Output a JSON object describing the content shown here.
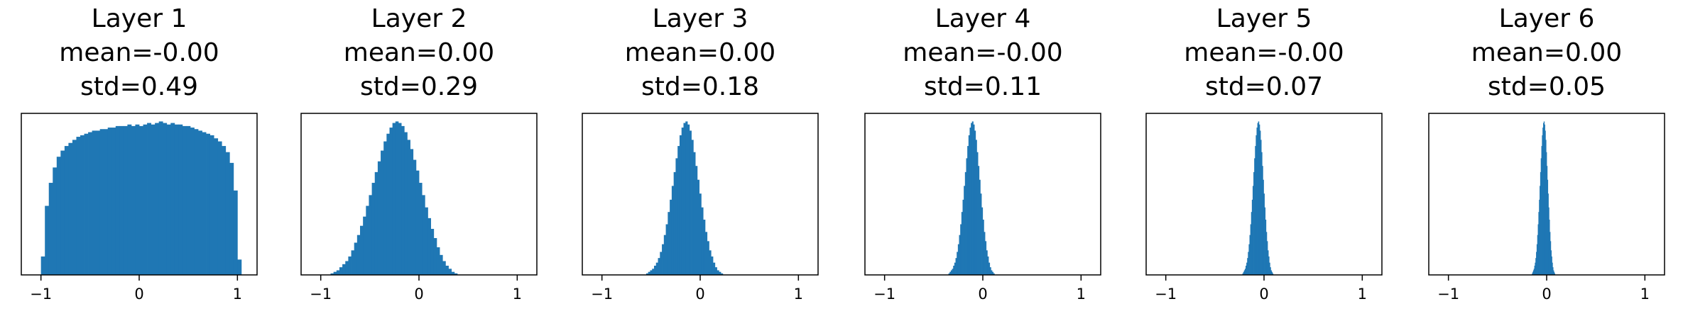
{
  "bar_color": "#1f77b4",
  "chart_data": [
    {
      "type": "bar",
      "title": "Layer 1",
      "subtitle_lines": [
        "mean=-0.00",
        "std=0.49"
      ],
      "xlim": [
        -1.2,
        1.2
      ],
      "xticks": [
        -1,
        0,
        1
      ],
      "xtick_labels": [
        "−1",
        "0",
        "1"
      ],
      "yticks": [],
      "bin_width": 0.04,
      "bin_start": -1.0,
      "values": [
        0.12,
        0.45,
        0.6,
        0.7,
        0.77,
        0.81,
        0.84,
        0.86,
        0.88,
        0.9,
        0.91,
        0.92,
        0.93,
        0.94,
        0.94,
        0.95,
        0.95,
        0.96,
        0.96,
        0.97,
        0.97,
        0.97,
        0.98,
        0.97,
        0.98,
        0.97,
        0.98,
        0.99,
        0.98,
        0.99,
        1.0,
        0.99,
        0.98,
        0.99,
        0.98,
        0.98,
        0.97,
        0.97,
        0.96,
        0.95,
        0.94,
        0.93,
        0.92,
        0.91,
        0.89,
        0.87,
        0.84,
        0.8,
        0.73,
        0.55,
        0.1
      ]
    },
    {
      "type": "bar",
      "title": "Layer 2",
      "subtitle_lines": [
        "mean=0.00",
        "std=0.29"
      ],
      "xlim": [
        -1.2,
        1.2
      ],
      "xticks": [
        -1,
        0,
        1
      ],
      "xtick_labels": [
        "−1",
        "0",
        "1"
      ],
      "yticks": [],
      "bin_width": 0.03,
      "bin_start": -0.9,
      "values": [
        0.01,
        0.02,
        0.03,
        0.05,
        0.07,
        0.09,
        0.12,
        0.16,
        0.21,
        0.26,
        0.32,
        0.38,
        0.45,
        0.52,
        0.6,
        0.67,
        0.74,
        0.81,
        0.87,
        0.92,
        0.96,
        0.99,
        1.0,
        0.99,
        0.97,
        0.93,
        0.88,
        0.82,
        0.75,
        0.68,
        0.6,
        0.52,
        0.44,
        0.37,
        0.3,
        0.24,
        0.18,
        0.13,
        0.09,
        0.06,
        0.04,
        0.02,
        0.01
      ]
    },
    {
      "type": "bar",
      "title": "Layer 3",
      "subtitle_lines": [
        "mean=0.00",
        "std=0.18"
      ],
      "xlim": [
        -1.2,
        1.2
      ],
      "xticks": [
        -1,
        0,
        1
      ],
      "xtick_labels": [
        "−1",
        "0",
        "1"
      ],
      "yticks": [],
      "bin_width": 0.02,
      "bin_start": -0.55,
      "values": [
        0.01,
        0.02,
        0.03,
        0.04,
        0.06,
        0.08,
        0.11,
        0.15,
        0.2,
        0.26,
        0.33,
        0.41,
        0.49,
        0.58,
        0.67,
        0.76,
        0.84,
        0.91,
        0.96,
        0.99,
        1.0,
        0.98,
        0.94,
        0.88,
        0.8,
        0.71,
        0.62,
        0.53,
        0.44,
        0.36,
        0.28,
        0.22,
        0.16,
        0.12,
        0.08,
        0.05,
        0.03,
        0.02,
        0.01
      ]
    },
    {
      "type": "bar",
      "title": "Layer 4",
      "subtitle_lines": [
        "mean=-0.00",
        "std=0.11"
      ],
      "xlim": [
        -1.2,
        1.2
      ],
      "xticks": [
        -1,
        0,
        1
      ],
      "xtick_labels": [
        "−1",
        "0",
        "1"
      ],
      "yticks": [],
      "bin_width": 0.012,
      "bin_start": -0.35,
      "values": [
        0.01,
        0.02,
        0.03,
        0.04,
        0.06,
        0.08,
        0.11,
        0.15,
        0.2,
        0.26,
        0.33,
        0.41,
        0.49,
        0.58,
        0.67,
        0.76,
        0.84,
        0.91,
        0.96,
        0.99,
        1.0,
        0.98,
        0.94,
        0.88,
        0.8,
        0.71,
        0.62,
        0.53,
        0.44,
        0.36,
        0.28,
        0.22,
        0.16,
        0.12,
        0.08,
        0.05,
        0.03,
        0.02,
        0.01
      ]
    },
    {
      "type": "bar",
      "title": "Layer 5",
      "subtitle_lines": [
        "mean=-0.00",
        "std=0.07"
      ],
      "xlim": [
        -1.2,
        1.2
      ],
      "xticks": [
        -1,
        0,
        1
      ],
      "xtick_labels": [
        "−1",
        "0",
        "1"
      ],
      "yticks": [],
      "bin_width": 0.008,
      "bin_start": -0.22,
      "values": [
        0.01,
        0.02,
        0.03,
        0.04,
        0.06,
        0.08,
        0.11,
        0.15,
        0.2,
        0.26,
        0.33,
        0.41,
        0.49,
        0.58,
        0.67,
        0.76,
        0.84,
        0.91,
        0.96,
        0.99,
        1.0,
        0.98,
        0.94,
        0.88,
        0.8,
        0.71,
        0.62,
        0.53,
        0.44,
        0.36,
        0.28,
        0.22,
        0.16,
        0.12,
        0.08,
        0.05,
        0.03,
        0.02,
        0.01
      ]
    },
    {
      "type": "bar",
      "title": "Layer 6",
      "subtitle_lines": [
        "mean=0.00",
        "std=0.05"
      ],
      "xlim": [
        -1.2,
        1.2
      ],
      "xticks": [
        -1,
        0,
        1
      ],
      "xtick_labels": [
        "−1",
        "0",
        "1"
      ],
      "yticks": [],
      "bin_width": 0.006,
      "bin_start": -0.15,
      "values": [
        0.01,
        0.02,
        0.03,
        0.04,
        0.06,
        0.08,
        0.11,
        0.15,
        0.2,
        0.26,
        0.33,
        0.41,
        0.49,
        0.58,
        0.67,
        0.76,
        0.84,
        0.91,
        0.96,
        0.99,
        1.0,
        0.98,
        0.94,
        0.88,
        0.8,
        0.71,
        0.62,
        0.53,
        0.44,
        0.36,
        0.28,
        0.22,
        0.16,
        0.12,
        0.08,
        0.05,
        0.03,
        0.02,
        0.01
      ]
    }
  ]
}
